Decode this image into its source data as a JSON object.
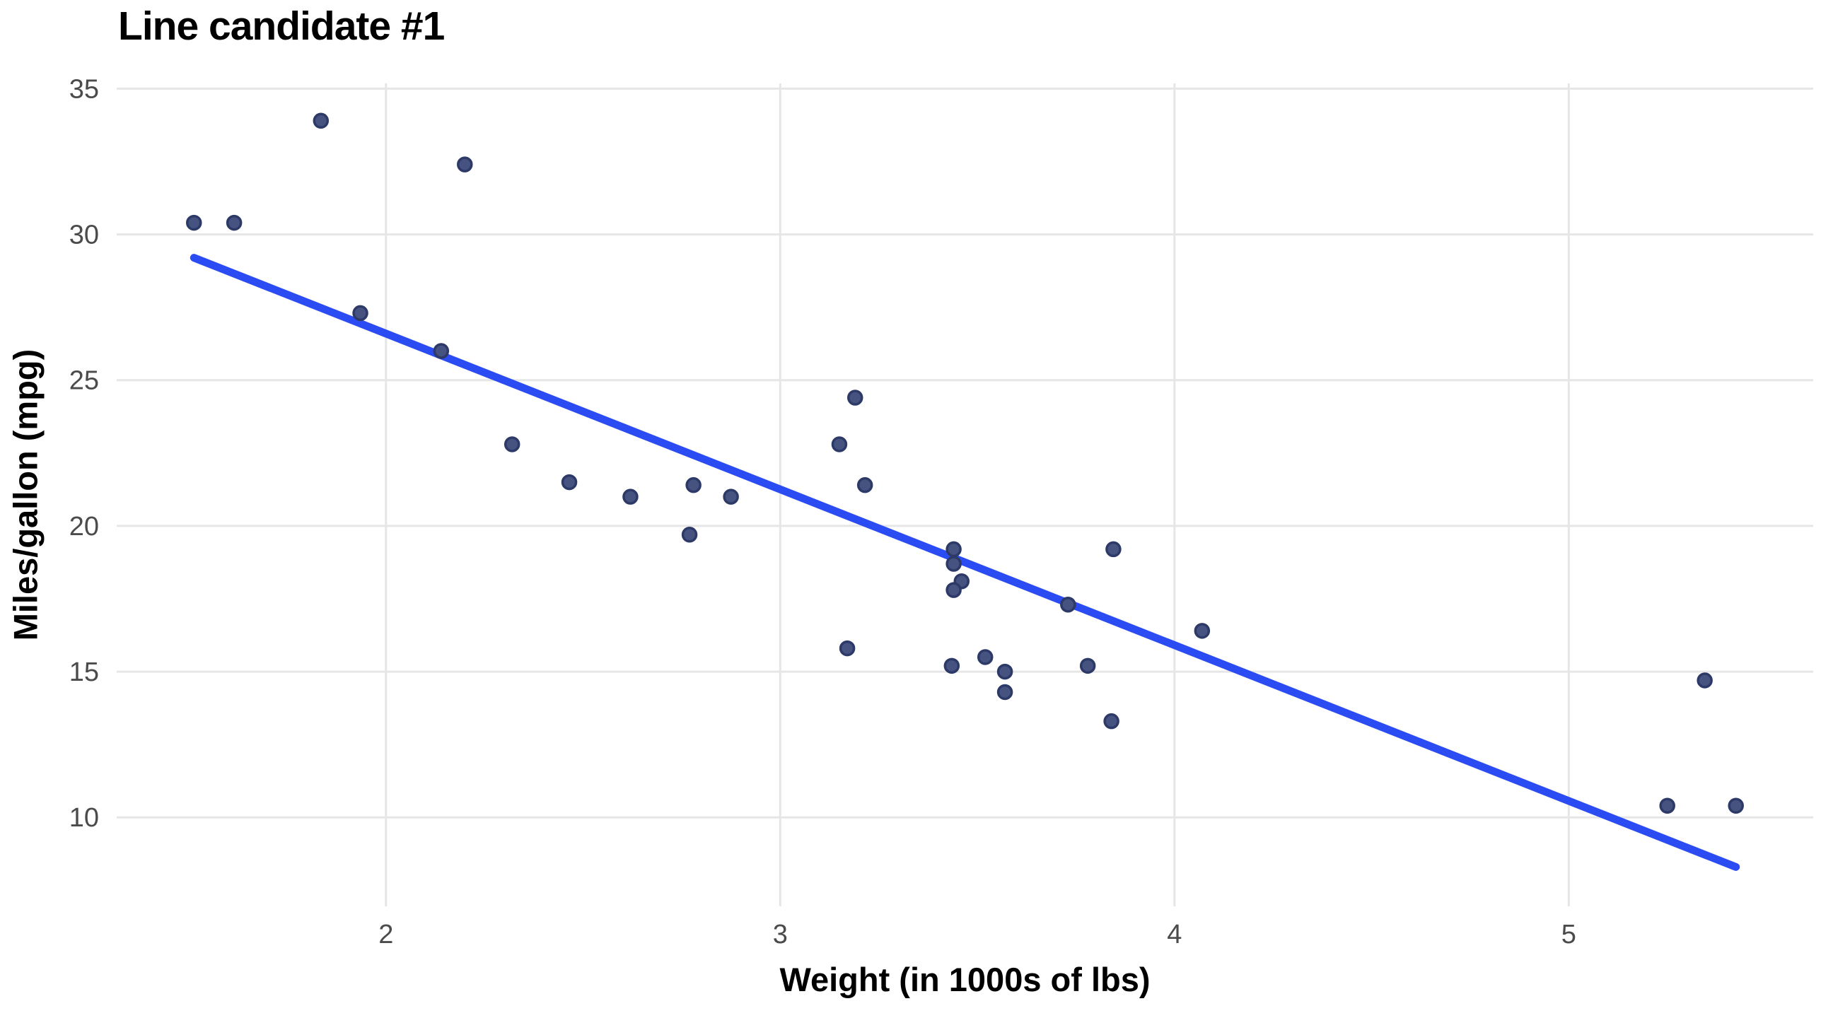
{
  "chart_data": {
    "type": "scatter",
    "title": "Line candidate #1",
    "xlabel": "Weight (in 1000s of lbs)",
    "ylabel": "Miles/gallon (mpg)",
    "xlim": [
      1.317,
      5.62
    ],
    "ylim": [
      6.95,
      35.18
    ],
    "x_ticks": [
      "2",
      "3",
      "4",
      "5"
    ],
    "x_tick_values": [
      2,
      3,
      4,
      5
    ],
    "y_ticks": [
      "10",
      "15",
      "20",
      "25",
      "30",
      "35"
    ],
    "y_tick_values": [
      10,
      15,
      20,
      25,
      30,
      35
    ],
    "grid": "major-only",
    "legend": "none",
    "points": [
      [
        2.62,
        21.0
      ],
      [
        2.875,
        21.0
      ],
      [
        2.32,
        22.8
      ],
      [
        3.215,
        21.4
      ],
      [
        3.44,
        18.7
      ],
      [
        3.46,
        18.1
      ],
      [
        3.57,
        14.3
      ],
      [
        3.19,
        24.4
      ],
      [
        3.15,
        22.8
      ],
      [
        3.44,
        19.2
      ],
      [
        3.44,
        17.8
      ],
      [
        4.07,
        16.4
      ],
      [
        3.73,
        17.3
      ],
      [
        3.78,
        15.2
      ],
      [
        5.25,
        10.4
      ],
      [
        5.424,
        10.4
      ],
      [
        5.345,
        14.7
      ],
      [
        2.2,
        32.4
      ],
      [
        1.615,
        30.4
      ],
      [
        1.835,
        33.9
      ],
      [
        2.465,
        21.5
      ],
      [
        3.52,
        15.5
      ],
      [
        3.435,
        15.2
      ],
      [
        3.84,
        13.3
      ],
      [
        3.845,
        19.2
      ],
      [
        1.935,
        27.3
      ],
      [
        2.14,
        26.0
      ],
      [
        1.513,
        30.4
      ],
      [
        3.17,
        15.8
      ],
      [
        2.77,
        19.7
      ],
      [
        3.57,
        15.0
      ],
      [
        2.78,
        21.4
      ]
    ],
    "line": {
      "intercept": 37.285,
      "slope": -5.344,
      "x_start": 1.513,
      "x_end": 5.424
    },
    "colors": {
      "line": "#2b4cf2",
      "point_fill": "#46527f",
      "point_stroke": "#2d3a68",
      "gridline": "#e6e6e6",
      "tick_label": "#4b4b4b",
      "title": "#000000",
      "background": "#ffffff"
    }
  }
}
